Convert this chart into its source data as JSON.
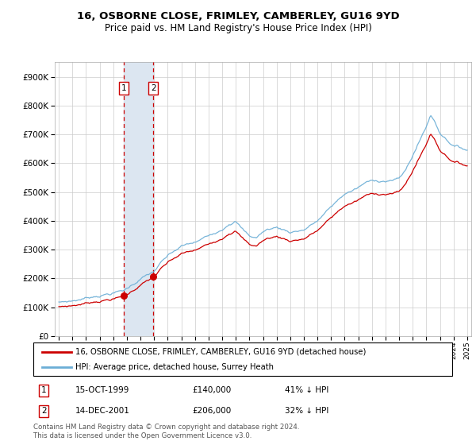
{
  "title": "16, OSBORNE CLOSE, FRIMLEY, CAMBERLEY, GU16 9YD",
  "subtitle": "Price paid vs. HM Land Registry's House Price Index (HPI)",
  "sale1_label": "15-OCT-1999",
  "sale1_price": 140000,
  "sale1_year": 1999.79,
  "sale1_hpi_diff": "41% ↓ HPI",
  "sale2_label": "14-DEC-2001",
  "sale2_price": 206000,
  "sale2_year": 2001.95,
  "sale2_hpi_diff": "32% ↓ HPI",
  "legend_line1": "16, OSBORNE CLOSE, FRIMLEY, CAMBERLEY, GU16 9YD (detached house)",
  "legend_line2": "HPI: Average price, detached house, Surrey Heath",
  "footer": "Contains HM Land Registry data © Crown copyright and database right 2024.\nThis data is licensed under the Open Government Licence v3.0.",
  "hpi_color": "#6baed6",
  "sale_color": "#cc0000",
  "highlight_color": "#dce6f1",
  "grid_color": "#cccccc",
  "background_color": "#ffffff"
}
